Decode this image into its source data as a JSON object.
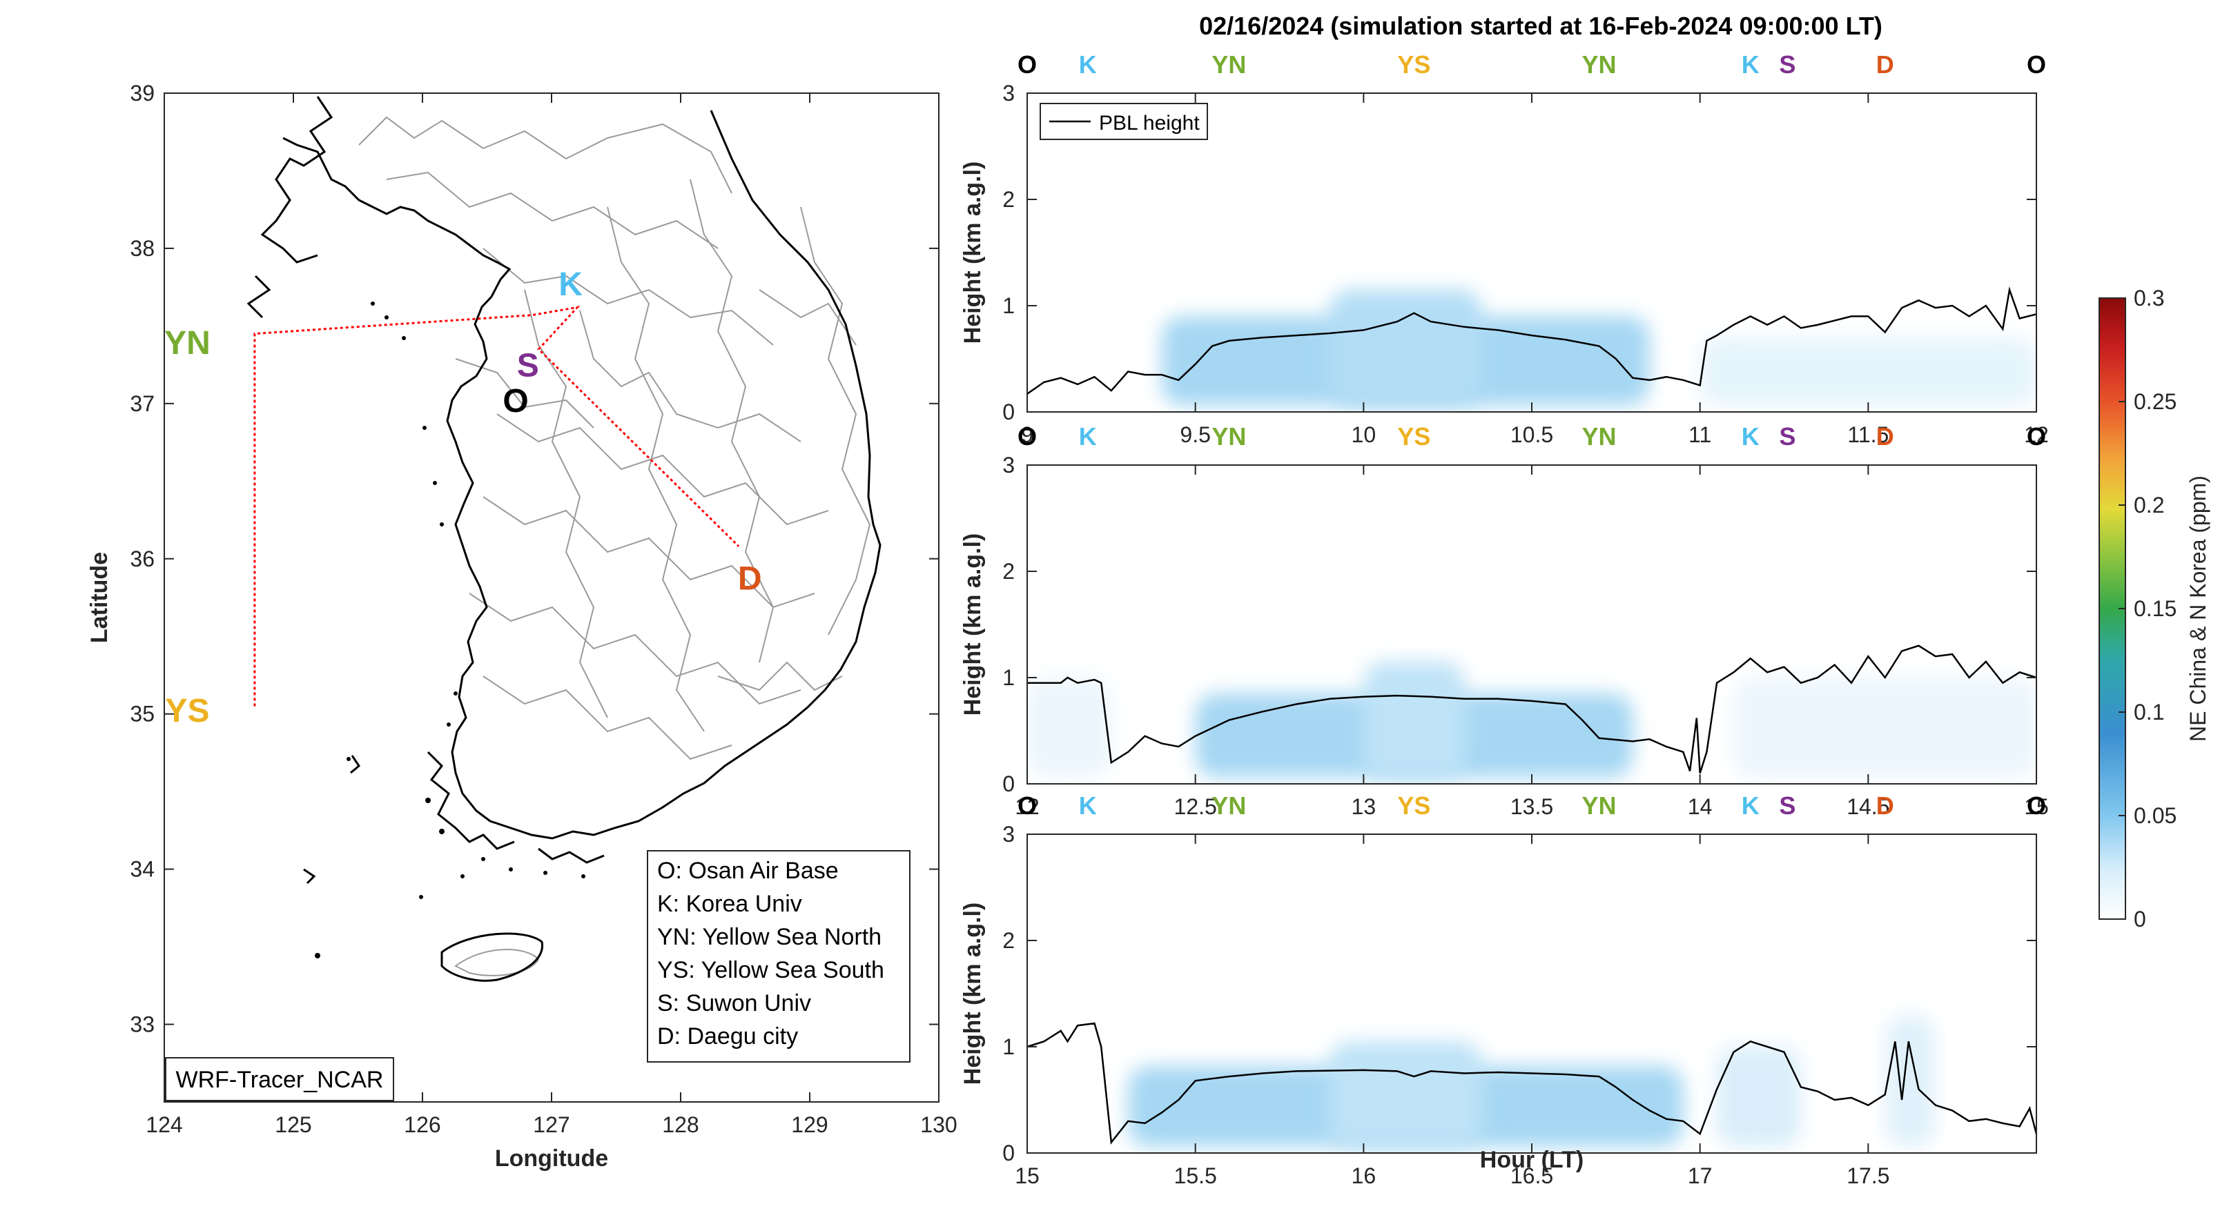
{
  "title": "02/16/2024 (simulation started at 16-Feb-2024 09:00:00 LT)",
  "watermark": "WRF-Tracer_NCAR",
  "colors": {
    "O": "#000000",
    "K": "#4DBEEE",
    "YN": "#77AC30",
    "YS": "#EDB120",
    "S": "#7E2F8E",
    "D": "#D95319",
    "track": "#ff0000",
    "pbl": "#000000"
  },
  "map": {
    "xlabel": "Longitude",
    "ylabel": "Latitude",
    "xlim": [
      124,
      130
    ],
    "ylim": [
      32.5,
      39
    ],
    "xticks": [
      "124",
      "125",
      "126",
      "127",
      "128",
      "129",
      "130"
    ],
    "yticks": [
      "33",
      "34",
      "35",
      "36",
      "37",
      "38",
      "39"
    ],
    "sites": [
      {
        "code": "K",
        "lon": 127.03,
        "lat": 37.59
      },
      {
        "code": "S",
        "lon": 126.86,
        "lat": 37.3
      },
      {
        "code": "O",
        "lon": 126.84,
        "lat": 37.08
      },
      {
        "code": "YN",
        "lon": 124.5,
        "lat": 37.4
      },
      {
        "code": "YS",
        "lon": 124.5,
        "lat": 35.03
      },
      {
        "code": "D",
        "lon": 128.6,
        "lat": 35.9
      }
    ],
    "track": [
      {
        "lon": 124.7,
        "lat": 35.05
      },
      {
        "lon": 124.7,
        "lat": 37.45
      },
      {
        "lon": 126.85,
        "lat": 37.57
      },
      {
        "lon": 127.2,
        "lat": 37.62
      },
      {
        "lon": 126.9,
        "lat": 37.35
      },
      {
        "lon": 128.45,
        "lat": 36.08
      }
    ],
    "legend_lines": [
      "O: Osan Air Base",
      "K: Korea Univ",
      "YN: Yellow Sea North",
      "YS: Yellow Sea South",
      "S: Suwon Univ",
      "D: Daegu city"
    ]
  },
  "colorbar": {
    "label": "NE China & N Korea (ppm)",
    "ticks": [
      "0",
      "0.05",
      "0.1",
      "0.15",
      "0.2",
      "0.25",
      "0.3"
    ],
    "range": [
      0,
      0.3
    ]
  },
  "chart_data": [
    {
      "type": "line",
      "series": [
        {
          "name": "PBL height"
        }
      ],
      "xlim": [
        9,
        12
      ],
      "ylim": [
        0,
        3
      ],
      "xticks": [
        "9",
        "9.5",
        "10",
        "10.5",
        "11",
        "11.5",
        "12"
      ],
      "yticks": [
        "0",
        "1",
        "2",
        "3"
      ],
      "ylabel": "Height (km a.g.l)",
      "xlabel": "",
      "legend": "PBL height",
      "site_markers": [
        {
          "code": "O",
          "x": 9.0
        },
        {
          "code": "K",
          "x": 9.18
        },
        {
          "code": "YN",
          "x": 9.6
        },
        {
          "code": "YS",
          "x": 10.15
        },
        {
          "code": "YN",
          "x": 10.7
        },
        {
          "code": "K",
          "x": 11.15
        },
        {
          "code": "S",
          "x": 11.26
        },
        {
          "code": "D",
          "x": 11.55
        },
        {
          "code": "O",
          "x": 12.0
        }
      ],
      "pbl": [
        [
          9.0,
          0.17
        ],
        [
          9.05,
          0.28
        ],
        [
          9.1,
          0.32
        ],
        [
          9.15,
          0.26
        ],
        [
          9.2,
          0.33
        ],
        [
          9.25,
          0.2
        ],
        [
          9.3,
          0.38
        ],
        [
          9.35,
          0.35
        ],
        [
          9.4,
          0.35
        ],
        [
          9.45,
          0.3
        ],
        [
          9.5,
          0.45
        ],
        [
          9.55,
          0.62
        ],
        [
          9.6,
          0.67
        ],
        [
          9.7,
          0.7
        ],
        [
          9.8,
          0.72
        ],
        [
          9.9,
          0.74
        ],
        [
          10.0,
          0.77
        ],
        [
          10.1,
          0.85
        ],
        [
          10.15,
          0.93
        ],
        [
          10.2,
          0.85
        ],
        [
          10.3,
          0.8
        ],
        [
          10.4,
          0.77
        ],
        [
          10.5,
          0.72
        ],
        [
          10.6,
          0.68
        ],
        [
          10.65,
          0.65
        ],
        [
          10.7,
          0.62
        ],
        [
          10.75,
          0.5
        ],
        [
          10.8,
          0.32
        ],
        [
          10.85,
          0.3
        ],
        [
          10.9,
          0.33
        ],
        [
          10.95,
          0.3
        ],
        [
          11.0,
          0.25
        ],
        [
          11.02,
          0.67
        ],
        [
          11.05,
          0.72
        ],
        [
          11.1,
          0.82
        ],
        [
          11.15,
          0.9
        ],
        [
          11.2,
          0.82
        ],
        [
          11.25,
          0.9
        ],
        [
          11.3,
          0.79
        ],
        [
          11.35,
          0.82
        ],
        [
          11.4,
          0.86
        ],
        [
          11.45,
          0.9
        ],
        [
          11.5,
          0.9
        ],
        [
          11.55,
          0.75
        ],
        [
          11.6,
          0.98
        ],
        [
          11.65,
          1.05
        ],
        [
          11.7,
          0.98
        ],
        [
          11.75,
          1.0
        ],
        [
          11.8,
          0.9
        ],
        [
          11.85,
          1.0
        ],
        [
          11.9,
          0.78
        ],
        [
          11.92,
          1.15
        ],
        [
          11.95,
          0.88
        ],
        [
          12.0,
          0.92
        ]
      ],
      "tracer_blobs": [
        {
          "x0": 9.4,
          "x1": 10.85,
          "y_top": 0.9,
          "c": 0.035
        },
        {
          "x0": 9.9,
          "x1": 10.35,
          "y_top": 1.15,
          "c": 0.03
        },
        {
          "x0": 11.0,
          "x1": 12.0,
          "y_top": 0.7,
          "c": 0.01
        }
      ]
    },
    {
      "type": "line",
      "series": [
        {
          "name": "PBL height"
        }
      ],
      "xlim": [
        12,
        15
      ],
      "ylim": [
        0,
        3
      ],
      "xticks": [
        "12",
        "12.5",
        "13",
        "13.5",
        "14",
        "14.5",
        "15"
      ],
      "yticks": [
        "0",
        "1",
        "2",
        "3"
      ],
      "ylabel": "Height (km a.g.l)",
      "xlabel": "",
      "site_markers": [
        {
          "code": "O",
          "x": 12.0
        },
        {
          "code": "K",
          "x": 12.18
        },
        {
          "code": "YN",
          "x": 12.6
        },
        {
          "code": "YS",
          "x": 13.15
        },
        {
          "code": "YN",
          "x": 13.7
        },
        {
          "code": "K",
          "x": 14.15
        },
        {
          "code": "S",
          "x": 14.26
        },
        {
          "code": "D",
          "x": 14.55
        },
        {
          "code": "O",
          "x": 15.0
        }
      ],
      "pbl": [
        [
          12.0,
          0.95
        ],
        [
          12.05,
          0.95
        ],
        [
          12.1,
          0.95
        ],
        [
          12.12,
          1.0
        ],
        [
          12.15,
          0.95
        ],
        [
          12.2,
          0.98
        ],
        [
          12.22,
          0.95
        ],
        [
          12.25,
          0.2
        ],
        [
          12.3,
          0.3
        ],
        [
          12.35,
          0.45
        ],
        [
          12.4,
          0.38
        ],
        [
          12.45,
          0.35
        ],
        [
          12.5,
          0.45
        ],
        [
          12.6,
          0.6
        ],
        [
          12.7,
          0.68
        ],
        [
          12.8,
          0.75
        ],
        [
          12.9,
          0.8
        ],
        [
          13.0,
          0.82
        ],
        [
          13.1,
          0.83
        ],
        [
          13.2,
          0.82
        ],
        [
          13.3,
          0.8
        ],
        [
          13.4,
          0.8
        ],
        [
          13.5,
          0.78
        ],
        [
          13.6,
          0.75
        ],
        [
          13.65,
          0.6
        ],
        [
          13.7,
          0.43
        ],
        [
          13.8,
          0.4
        ],
        [
          13.85,
          0.42
        ],
        [
          13.9,
          0.35
        ],
        [
          13.95,
          0.3
        ],
        [
          13.97,
          0.12
        ],
        [
          13.99,
          0.62
        ],
        [
          14.0,
          0.1
        ],
        [
          14.02,
          0.3
        ],
        [
          14.05,
          0.95
        ],
        [
          14.1,
          1.05
        ],
        [
          14.15,
          1.18
        ],
        [
          14.2,
          1.05
        ],
        [
          14.25,
          1.1
        ],
        [
          14.3,
          0.95
        ],
        [
          14.35,
          1.0
        ],
        [
          14.4,
          1.12
        ],
        [
          14.45,
          0.95
        ],
        [
          14.5,
          1.2
        ],
        [
          14.55,
          1.0
        ],
        [
          14.6,
          1.25
        ],
        [
          14.65,
          1.3
        ],
        [
          14.7,
          1.2
        ],
        [
          14.75,
          1.22
        ],
        [
          14.8,
          1.0
        ],
        [
          14.85,
          1.15
        ],
        [
          14.9,
          0.95
        ],
        [
          14.95,
          1.05
        ],
        [
          15.0,
          1.0
        ]
      ],
      "tracer_blobs": [
        {
          "x0": 12.5,
          "x1": 13.8,
          "y_top": 0.85,
          "c": 0.035
        },
        {
          "x0": 13.0,
          "x1": 13.3,
          "y_top": 1.15,
          "c": 0.025
        },
        {
          "x0": 12.0,
          "x1": 12.25,
          "y_top": 1.0,
          "c": 0.008
        },
        {
          "x0": 14.1,
          "x1": 15.0,
          "y_top": 1.0,
          "c": 0.008
        }
      ]
    },
    {
      "type": "line",
      "series": [
        {
          "name": "PBL height"
        }
      ],
      "xlim": [
        15,
        18
      ],
      "ylim": [
        0,
        3
      ],
      "xticks": [
        "15",
        "15.5",
        "16",
        "16.5",
        "17",
        "17.5"
      ],
      "yticks": [
        "0",
        "1",
        "2",
        "3"
      ],
      "ylabel": "Height (km a.g.l)",
      "xlabel": "Hour (LT)",
      "site_markers": [
        {
          "code": "O",
          "x": 15.0
        },
        {
          "code": "K",
          "x": 15.18
        },
        {
          "code": "YN",
          "x": 15.6
        },
        {
          "code": "YS",
          "x": 16.15
        },
        {
          "code": "YN",
          "x": 16.7
        },
        {
          "code": "K",
          "x": 17.15
        },
        {
          "code": "S",
          "x": 17.26
        },
        {
          "code": "D",
          "x": 17.55
        },
        {
          "code": "O",
          "x": 18.0
        }
      ],
      "pbl": [
        [
          15.0,
          1.0
        ],
        [
          15.05,
          1.05
        ],
        [
          15.1,
          1.15
        ],
        [
          15.12,
          1.05
        ],
        [
          15.15,
          1.2
        ],
        [
          15.2,
          1.22
        ],
        [
          15.22,
          1.0
        ],
        [
          15.25,
          0.1
        ],
        [
          15.3,
          0.3
        ],
        [
          15.35,
          0.28
        ],
        [
          15.4,
          0.38
        ],
        [
          15.45,
          0.5
        ],
        [
          15.5,
          0.68
        ],
        [
          15.6,
          0.72
        ],
        [
          15.7,
          0.75
        ],
        [
          15.8,
          0.77
        ],
        [
          16.0,
          0.78
        ],
        [
          16.1,
          0.77
        ],
        [
          16.15,
          0.72
        ],
        [
          16.2,
          0.77
        ],
        [
          16.3,
          0.75
        ],
        [
          16.4,
          0.76
        ],
        [
          16.5,
          0.75
        ],
        [
          16.6,
          0.74
        ],
        [
          16.7,
          0.72
        ],
        [
          16.75,
          0.62
        ],
        [
          16.8,
          0.5
        ],
        [
          16.85,
          0.4
        ],
        [
          16.9,
          0.32
        ],
        [
          16.95,
          0.3
        ],
        [
          17.0,
          0.18
        ],
        [
          17.05,
          0.6
        ],
        [
          17.1,
          0.95
        ],
        [
          17.15,
          1.05
        ],
        [
          17.2,
          1.0
        ],
        [
          17.25,
          0.95
        ],
        [
          17.3,
          0.62
        ],
        [
          17.35,
          0.58
        ],
        [
          17.4,
          0.5
        ],
        [
          17.45,
          0.52
        ],
        [
          17.5,
          0.45
        ],
        [
          17.55,
          0.55
        ],
        [
          17.58,
          1.05
        ],
        [
          17.6,
          0.5
        ],
        [
          17.62,
          1.05
        ],
        [
          17.65,
          0.6
        ],
        [
          17.7,
          0.45
        ],
        [
          17.75,
          0.4
        ],
        [
          17.8,
          0.3
        ],
        [
          17.85,
          0.32
        ],
        [
          17.9,
          0.28
        ],
        [
          17.95,
          0.25
        ],
        [
          17.98,
          0.42
        ],
        [
          18.0,
          0.18
        ]
      ],
      "tracer_blobs": [
        {
          "x0": 15.3,
          "x1": 16.95,
          "y_top": 0.82,
          "c": 0.035
        },
        {
          "x0": 15.9,
          "x1": 16.35,
          "y_top": 1.05,
          "c": 0.025
        },
        {
          "x0": 17.05,
          "x1": 17.3,
          "y_top": 1.0,
          "c": 0.015
        },
        {
          "x0": 17.55,
          "x1": 17.7,
          "y_top": 1.3,
          "c": 0.012
        }
      ]
    }
  ]
}
